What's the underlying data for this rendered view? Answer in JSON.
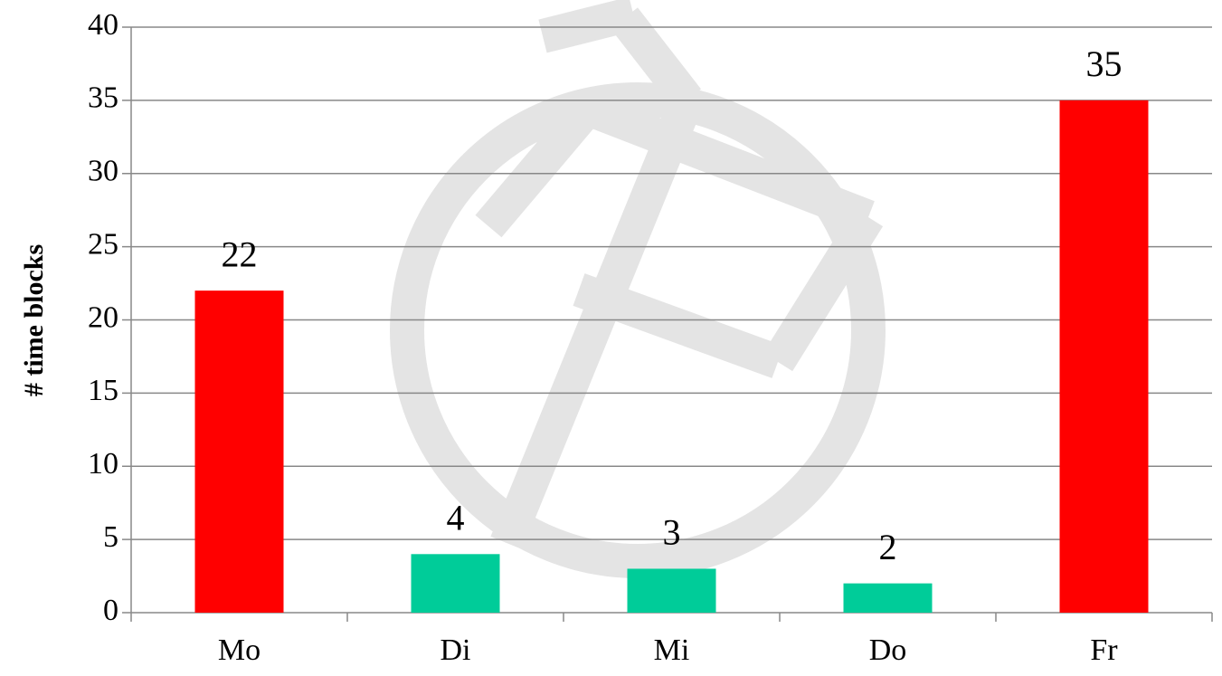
{
  "chart_data": {
    "type": "bar",
    "y_label": "# time blocks",
    "categories": [
      "Mo",
      "Di",
      "Mi",
      "Do",
      "Fr"
    ],
    "values": [
      22,
      4,
      3,
      2,
      35
    ],
    "colors": [
      "#ff0000",
      "#00cc99",
      "#00cc99",
      "#00cc99",
      "#ff0000"
    ],
    "ylim": [
      0,
      40
    ],
    "yticks": [
      0,
      5,
      10,
      15,
      20,
      25,
      30,
      35,
      40
    ],
    "grid": true
  }
}
